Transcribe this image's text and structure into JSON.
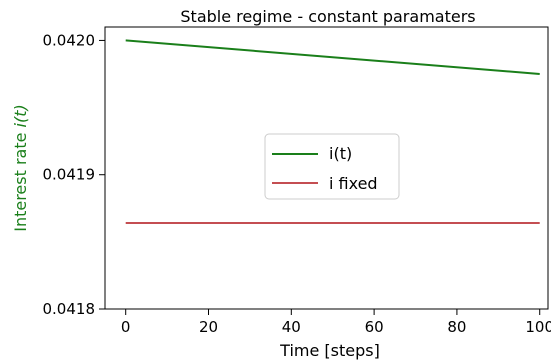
{
  "chart_data": {
    "type": "line",
    "title": "Stable regime - constant paramaters",
    "xlabel": "Time [steps]",
    "ylabel_prefix": "Interest rate ",
    "ylabel_var": "i(t)",
    "xlim": [
      -5,
      102
    ],
    "ylim": [
      0.0418,
      0.04201
    ],
    "x_ticks": [
      0,
      20,
      40,
      60,
      80,
      100
    ],
    "x_tick_labels": [
      "0",
      "20",
      "40",
      "60",
      "80",
      "100"
    ],
    "y_ticks": [
      0.0418,
      0.0419,
      0.042
    ],
    "y_tick_labels": [
      "0.0418",
      "0.0419",
      "0.0420"
    ],
    "series": [
      {
        "name": "i(t)",
        "color": "#1a7f1a",
        "x": [
          0,
          100
        ],
        "y": [
          0.042,
          0.041975
        ]
      },
      {
        "name": "i fixed",
        "color": "#c44e52",
        "x": [
          0,
          100
        ],
        "y": [
          0.041864,
          0.041864
        ]
      }
    ],
    "ylabel_color": "#1a7f1a",
    "legend_position": "center"
  }
}
